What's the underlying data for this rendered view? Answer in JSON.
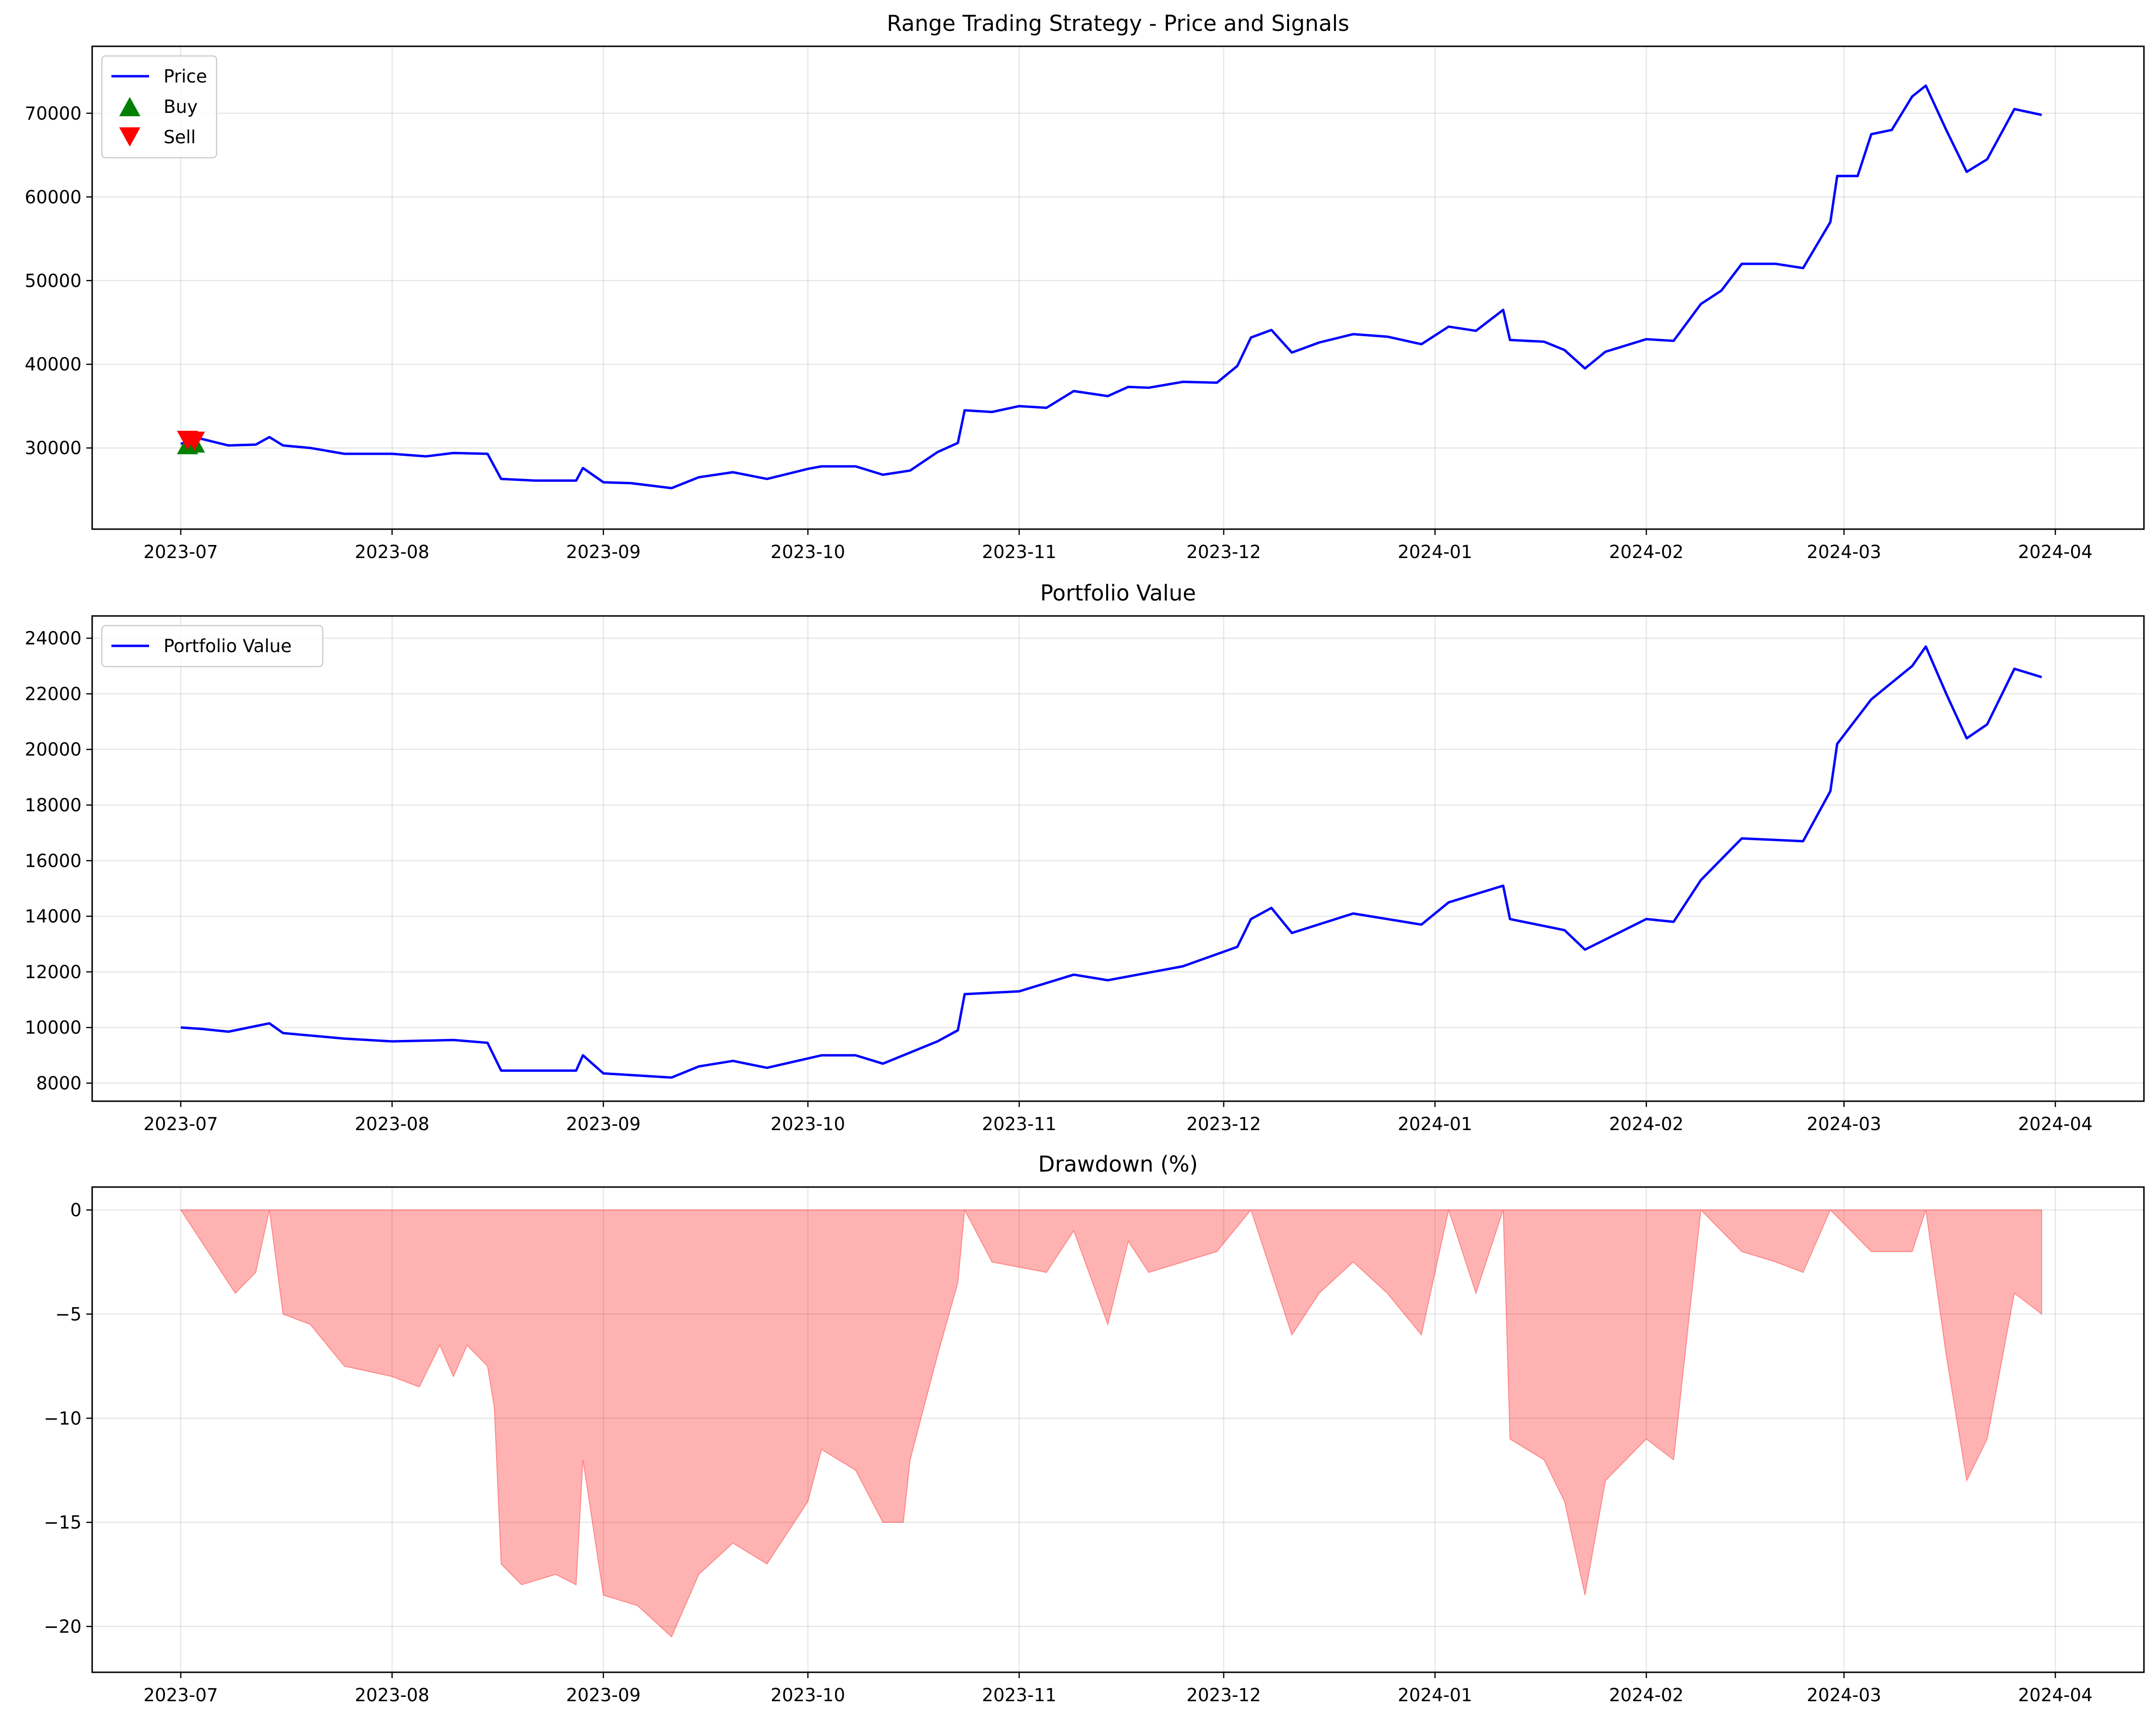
{
  "chart_data": [
    {
      "type": "line",
      "title": "Range Trading Strategy - Price and Signals",
      "xlabel": "",
      "ylabel": "",
      "x_ticks": [
        "2023-07",
        "2023-08",
        "2023-09",
        "2023-10",
        "2023-11",
        "2023-12",
        "2024-01",
        "2024-02",
        "2024-03",
        "2024-04"
      ],
      "y_ticks": [
        30000,
        40000,
        50000,
        60000,
        70000
      ],
      "ylim": [
        20300,
        78000
      ],
      "grid": true,
      "legend_position": "top-left",
      "series": [
        {
          "name": "Price",
          "color": "#0000ff",
          "points": [
            [
              "2023-07-01",
              30500
            ],
            [
              "2023-07-04",
              31100
            ],
            [
              "2023-07-08",
              30300
            ],
            [
              "2023-07-12",
              30400
            ],
            [
              "2023-07-14",
              31300
            ],
            [
              "2023-07-16",
              30300
            ],
            [
              "2023-07-20",
              30000
            ],
            [
              "2023-07-25",
              29300
            ],
            [
              "2023-08-01",
              29300
            ],
            [
              "2023-08-06",
              29000
            ],
            [
              "2023-08-10",
              29400
            ],
            [
              "2023-08-15",
              29300
            ],
            [
              "2023-08-17",
              26300
            ],
            [
              "2023-08-22",
              26100
            ],
            [
              "2023-08-28",
              26100
            ],
            [
              "2023-08-29",
              27600
            ],
            [
              "2023-09-01",
              25900
            ],
            [
              "2023-09-05",
              25800
            ],
            [
              "2023-09-11",
              25200
            ],
            [
              "2023-09-15",
              26500
            ],
            [
              "2023-09-20",
              27100
            ],
            [
              "2023-09-25",
              26300
            ],
            [
              "2023-10-01",
              27500
            ],
            [
              "2023-10-03",
              27800
            ],
            [
              "2023-10-08",
              27800
            ],
            [
              "2023-10-12",
              26800
            ],
            [
              "2023-10-16",
              27300
            ],
            [
              "2023-10-20",
              29500
            ],
            [
              "2023-10-23",
              30600
            ],
            [
              "2023-10-24",
              34500
            ],
            [
              "2023-10-28",
              34300
            ],
            [
              "2023-11-01",
              35000
            ],
            [
              "2023-11-05",
              34800
            ],
            [
              "2023-11-09",
              36800
            ],
            [
              "2023-11-14",
              36200
            ],
            [
              "2023-11-17",
              37300
            ],
            [
              "2023-11-20",
              37200
            ],
            [
              "2023-11-25",
              37900
            ],
            [
              "2023-11-30",
              37800
            ],
            [
              "2023-12-03",
              39800
            ],
            [
              "2023-12-05",
              43200
            ],
            [
              "2023-12-08",
              44100
            ],
            [
              "2023-12-11",
              41400
            ],
            [
              "2023-12-15",
              42600
            ],
            [
              "2023-12-20",
              43600
            ],
            [
              "2023-12-25",
              43300
            ],
            [
              "2023-12-30",
              42400
            ],
            [
              "2024-01-03",
              44500
            ],
            [
              "2024-01-07",
              44000
            ],
            [
              "2024-01-11",
              46500
            ],
            [
              "2024-01-12",
              42900
            ],
            [
              "2024-01-17",
              42700
            ],
            [
              "2024-01-20",
              41700
            ],
            [
              "2024-01-23",
              39500
            ],
            [
              "2024-01-26",
              41500
            ],
            [
              "2024-02-01",
              43000
            ],
            [
              "2024-02-05",
              42800
            ],
            [
              "2024-02-09",
              47200
            ],
            [
              "2024-02-12",
              48800
            ],
            [
              "2024-02-15",
              52000
            ],
            [
              "2024-02-20",
              52000
            ],
            [
              "2024-02-24",
              51500
            ],
            [
              "2024-02-28",
              57000
            ],
            [
              "2024-02-29",
              62500
            ],
            [
              "2024-03-03",
              62500
            ],
            [
              "2024-03-05",
              67500
            ],
            [
              "2024-03-08",
              68000
            ],
            [
              "2024-03-11",
              72000
            ],
            [
              "2024-03-13",
              73300
            ],
            [
              "2024-03-16",
              68000
            ],
            [
              "2024-03-19",
              63000
            ],
            [
              "2024-03-22",
              64500
            ],
            [
              "2024-03-26",
              70500
            ],
            [
              "2024-03-30",
              69800
            ]
          ]
        },
        {
          "name": "Buy",
          "marker": "triangle-up",
          "color": "#008000",
          "points": [
            [
              "2023-07-02",
              30400
            ],
            [
              "2023-07-03",
              30600
            ]
          ]
        },
        {
          "name": "Sell",
          "marker": "triangle-down",
          "color": "#ff0000",
          "points": [
            [
              "2023-07-02",
              30900
            ],
            [
              "2023-07-03",
              30800
            ]
          ]
        }
      ]
    },
    {
      "type": "line",
      "title": "Portfolio Value",
      "xlabel": "",
      "ylabel": "",
      "x_ticks": [
        "2023-07",
        "2023-08",
        "2023-09",
        "2023-10",
        "2023-11",
        "2023-12",
        "2024-01",
        "2024-02",
        "2024-03",
        "2024-04"
      ],
      "y_ticks": [
        8000,
        10000,
        12000,
        14000,
        16000,
        18000,
        20000,
        22000,
        24000
      ],
      "ylim": [
        7350,
        24800
      ],
      "grid": true,
      "legend_position": "top-left",
      "series": [
        {
          "name": "Portfolio Value",
          "color": "#0000ff",
          "points": [
            [
              "2023-07-01",
              10000
            ],
            [
              "2023-07-04",
              9950
            ],
            [
              "2023-07-08",
              9850
            ],
            [
              "2023-07-14",
              10150
            ],
            [
              "2023-07-16",
              9800
            ],
            [
              "2023-07-25",
              9600
            ],
            [
              "2023-08-01",
              9500
            ],
            [
              "2023-08-10",
              9550
            ],
            [
              "2023-08-15",
              9450
            ],
            [
              "2023-08-17",
              8450
            ],
            [
              "2023-08-28",
              8450
            ],
            [
              "2023-08-29",
              9000
            ],
            [
              "2023-09-01",
              8350
            ],
            [
              "2023-09-11",
              8200
            ],
            [
              "2023-09-15",
              8600
            ],
            [
              "2023-09-20",
              8800
            ],
            [
              "2023-09-25",
              8550
            ],
            [
              "2023-10-03",
              9000
            ],
            [
              "2023-10-08",
              9000
            ],
            [
              "2023-10-12",
              8700
            ],
            [
              "2023-10-20",
              9500
            ],
            [
              "2023-10-23",
              9900
            ],
            [
              "2023-10-24",
              11200
            ],
            [
              "2023-11-01",
              11300
            ],
            [
              "2023-11-09",
              11900
            ],
            [
              "2023-11-14",
              11700
            ],
            [
              "2023-11-25",
              12200
            ],
            [
              "2023-12-03",
              12900
            ],
            [
              "2023-12-05",
              13900
            ],
            [
              "2023-12-08",
              14300
            ],
            [
              "2023-12-11",
              13400
            ],
            [
              "2023-12-20",
              14100
            ],
            [
              "2023-12-30",
              13700
            ],
            [
              "2024-01-03",
              14500
            ],
            [
              "2024-01-11",
              15100
            ],
            [
              "2024-01-12",
              13900
            ],
            [
              "2024-01-20",
              13500
            ],
            [
              "2024-01-23",
              12800
            ],
            [
              "2024-02-01",
              13900
            ],
            [
              "2024-02-05",
              13800
            ],
            [
              "2024-02-09",
              15300
            ],
            [
              "2024-02-15",
              16800
            ],
            [
              "2024-02-24",
              16700
            ],
            [
              "2024-02-28",
              18500
            ],
            [
              "2024-02-29",
              20200
            ],
            [
              "2024-03-05",
              21800
            ],
            [
              "2024-03-11",
              23000
            ],
            [
              "2024-03-13",
              23700
            ],
            [
              "2024-03-16",
              22000
            ],
            [
              "2024-03-19",
              20400
            ],
            [
              "2024-03-22",
              20900
            ],
            [
              "2024-03-26",
              22900
            ],
            [
              "2024-03-30",
              22600
            ]
          ]
        }
      ]
    },
    {
      "type": "area",
      "title": "Drawdown (%)",
      "xlabel": "",
      "ylabel": "",
      "x_ticks": [
        "2023-07",
        "2023-08",
        "2023-09",
        "2023-10",
        "2023-11",
        "2023-12",
        "2024-01",
        "2024-02",
        "2024-03",
        "2024-04"
      ],
      "y_ticks": [
        0,
        -5,
        -10,
        -15,
        -20
      ],
      "y_tick_labels": [
        "0",
        "−5",
        "−10",
        "−15",
        "−20"
      ],
      "ylim": [
        -22.2,
        1.1
      ],
      "grid": true,
      "series": [
        {
          "name": "Drawdown",
          "color": "#ff0000",
          "fill_opacity": 0.3,
          "points": [
            [
              "2023-07-01",
              0
            ],
            [
              "2023-07-03",
              -1
            ],
            [
              "2023-07-06",
              -2.5
            ],
            [
              "2023-07-09",
              -4
            ],
            [
              "2023-07-12",
              -3
            ],
            [
              "2023-07-14",
              0
            ],
            [
              "2023-07-16",
              -5
            ],
            [
              "2023-07-20",
              -5.5
            ],
            [
              "2023-07-25",
              -7.5
            ],
            [
              "2023-08-01",
              -8
            ],
            [
              "2023-08-05",
              -8.5
            ],
            [
              "2023-08-08",
              -6.5
            ],
            [
              "2023-08-10",
              -8
            ],
            [
              "2023-08-12",
              -6.5
            ],
            [
              "2023-08-15",
              -7.5
            ],
            [
              "2023-08-16",
              -9.5
            ],
            [
              "2023-08-17",
              -17
            ],
            [
              "2023-08-20",
              -18
            ],
            [
              "2023-08-25",
              -17.5
            ],
            [
              "2023-08-28",
              -18
            ],
            [
              "2023-08-29",
              -12
            ],
            [
              "2023-09-01",
              -18.5
            ],
            [
              "2023-09-06",
              -19
            ],
            [
              "2023-09-11",
              -20.5
            ],
            [
              "2023-09-15",
              -17.5
            ],
            [
              "2023-09-20",
              -16
            ],
            [
              "2023-09-25",
              -17
            ],
            [
              "2023-10-01",
              -14
            ],
            [
              "2023-10-03",
              -11.5
            ],
            [
              "2023-10-08",
              -12.5
            ],
            [
              "2023-10-12",
              -15
            ],
            [
              "2023-10-15",
              -15
            ],
            [
              "2023-10-16",
              -12
            ],
            [
              "2023-10-20",
              -7
            ],
            [
              "2023-10-23",
              -3.5
            ],
            [
              "2023-10-24",
              0
            ],
            [
              "2023-10-28",
              -2.5
            ],
            [
              "2023-11-05",
              -3
            ],
            [
              "2023-11-09",
              -1
            ],
            [
              "2023-11-14",
              -5.5
            ],
            [
              "2023-11-17",
              -1.5
            ],
            [
              "2023-11-20",
              -3
            ],
            [
              "2023-11-30",
              -2
            ],
            [
              "2023-12-05",
              0
            ],
            [
              "2023-12-11",
              -6
            ],
            [
              "2023-12-15",
              -4
            ],
            [
              "2023-12-20",
              -2.5
            ],
            [
              "2023-12-25",
              -4
            ],
            [
              "2023-12-30",
              -6
            ],
            [
              "2024-01-03",
              0
            ],
            [
              "2024-01-07",
              -4
            ],
            [
              "2024-01-11",
              0
            ],
            [
              "2024-01-12",
              -11
            ],
            [
              "2024-01-17",
              -12
            ],
            [
              "2024-01-20",
              -14
            ],
            [
              "2024-01-23",
              -18.5
            ],
            [
              "2024-01-26",
              -13
            ],
            [
              "2024-02-01",
              -11
            ],
            [
              "2024-02-05",
              -12
            ],
            [
              "2024-02-09",
              0
            ],
            [
              "2024-02-15",
              -2
            ],
            [
              "2024-02-20",
              -2.5
            ],
            [
              "2024-02-24",
              -3
            ],
            [
              "2024-02-28",
              0
            ],
            [
              "2024-03-05",
              -2
            ],
            [
              "2024-03-11",
              -2
            ],
            [
              "2024-03-13",
              0
            ],
            [
              "2024-03-16",
              -7
            ],
            [
              "2024-03-19",
              -13
            ],
            [
              "2024-03-22",
              -11
            ],
            [
              "2024-03-26",
              -4
            ],
            [
              "2024-03-30",
              -5
            ]
          ]
        }
      ]
    }
  ]
}
